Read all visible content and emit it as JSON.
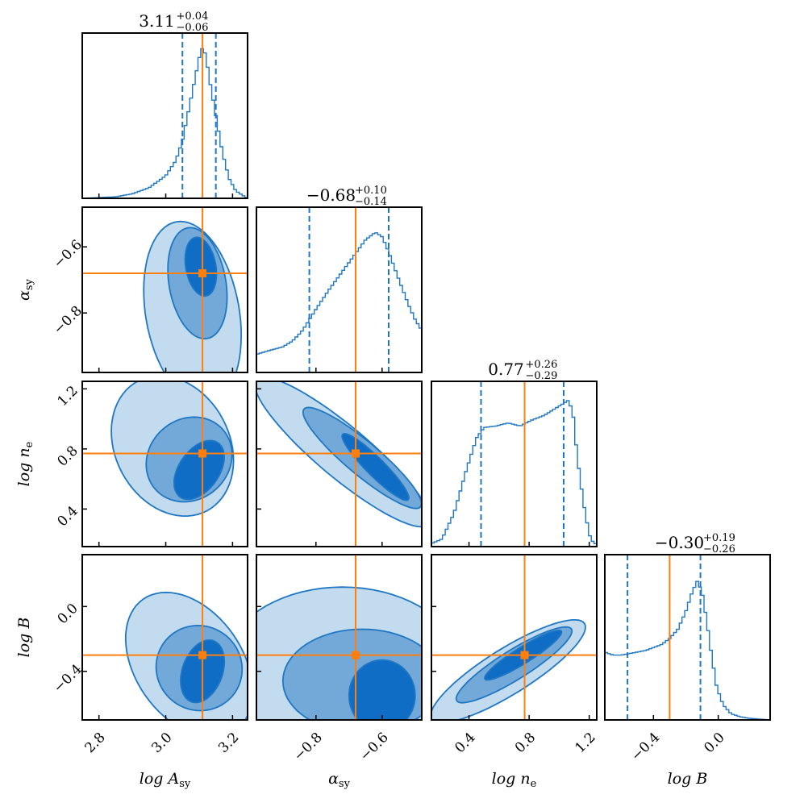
{
  "chart_data": {
    "type": "corner",
    "parameters": [
      {
        "key": "logA",
        "label": "log A_sy",
        "label_main": "log A",
        "label_sub": "sy",
        "range": [
          2.75,
          3.245
        ],
        "ticks": [
          2.8,
          3.0,
          3.2
        ],
        "tick_labels": [
          "2.8",
          "3.0",
          "3.2"
        ],
        "truth": 3.11,
        "title": {
          "value": "3.11",
          "plus": "+0.04",
          "minus": "−0.06"
        },
        "quantiles": [
          3.05,
          3.11,
          3.15
        ]
      },
      {
        "key": "alpha",
        "label": "α_sy",
        "label_main": "α",
        "label_sub": "sy",
        "range": [
          -0.98,
          -0.48
        ],
        "ticks": [
          -0.8,
          -0.6
        ],
        "tick_labels": [
          "−0.8",
          "−0.6"
        ],
        "truth": -0.68,
        "title": {
          "value": "−0.68",
          "plus": "+0.10",
          "minus": "−0.14"
        },
        "quantiles": [
          -0.82,
          -0.68,
          -0.58
        ]
      },
      {
        "key": "logne",
        "label": "log n_e",
        "label_main": "log n",
        "label_sub": "e",
        "range": [
          0.15,
          1.25
        ],
        "ticks": [
          0.4,
          0.8,
          1.2
        ],
        "tick_labels": [
          "0.4",
          "0.8",
          "1.2"
        ],
        "truth": 0.77,
        "title": {
          "value": "0.77",
          "plus": "+0.26",
          "minus": "−0.29"
        },
        "quantiles": [
          0.48,
          0.77,
          1.03
        ]
      },
      {
        "key": "logB",
        "label": "log B",
        "label_main": "log B",
        "label_sub": "",
        "range": [
          -0.7,
          0.32
        ],
        "ticks": [
          -0.4,
          0.0
        ],
        "tick_labels": [
          "−0.4",
          "0.0"
        ],
        "truth": -0.3,
        "title": {
          "value": "−0.30",
          "plus": "+0.19",
          "minus": "−0.26"
        },
        "quantiles": [
          -0.56,
          -0.3,
          -0.11
        ]
      }
    ],
    "left_axis_ticks": {
      "alpha": {
        "ticks": [
          -0.8,
          -0.6
        ],
        "labels": [
          "−0.8",
          "−0.6"
        ]
      },
      "logne": {
        "ticks": [
          0.4,
          0.8,
          1.2
        ],
        "labels": [
          "0.4",
          "0.8",
          "1.2"
        ]
      },
      "logB": {
        "ticks": [
          -0.4,
          0.0
        ],
        "labels": [
          "−0.4",
          "0.0"
        ]
      }
    },
    "histograms": {
      "logA": {
        "x": [
          2.75,
          2.85,
          2.9,
          2.95,
          3.0,
          3.03,
          3.05,
          3.07,
          3.09,
          3.1,
          3.11,
          3.12,
          3.13,
          3.15,
          3.17,
          3.19,
          3.21,
          3.23,
          3.245
        ],
        "density": [
          0,
          0.01,
          0.03,
          0.07,
          0.15,
          0.25,
          0.38,
          0.6,
          0.82,
          0.93,
          1.0,
          0.95,
          0.8,
          0.55,
          0.3,
          0.13,
          0.05,
          0.02,
          0
        ]
      },
      "alpha": {
        "x": [
          -0.98,
          -0.95,
          -0.9,
          -0.87,
          -0.84,
          -0.8,
          -0.76,
          -0.72,
          -0.68,
          -0.65,
          -0.62,
          -0.6,
          -0.58,
          -0.55,
          -0.52,
          -0.5,
          -0.48
        ],
        "density": [
          0.12,
          0.14,
          0.17,
          0.21,
          0.28,
          0.42,
          0.55,
          0.67,
          0.79,
          0.88,
          0.93,
          0.9,
          0.8,
          0.62,
          0.45,
          0.35,
          0.28
        ]
      },
      "logne": {
        "x": [
          0.15,
          0.22,
          0.3,
          0.38,
          0.45,
          0.5,
          0.58,
          0.66,
          0.74,
          0.82,
          0.9,
          0.98,
          1.03,
          1.06,
          1.09,
          1.12,
          1.16,
          1.2,
          1.23
        ],
        "density": [
          0.02,
          0.05,
          0.22,
          0.5,
          0.72,
          0.79,
          0.8,
          0.82,
          0.8,
          0.84,
          0.87,
          0.92,
          0.95,
          0.97,
          0.9,
          0.6,
          0.3,
          0.08,
          0.02
        ]
      },
      "logB": {
        "x": [
          -0.7,
          -0.65,
          -0.6,
          -0.55,
          -0.5,
          -0.45,
          -0.4,
          -0.35,
          -0.3,
          -0.25,
          -0.2,
          -0.16,
          -0.13,
          -0.1,
          -0.07,
          -0.04,
          -0.01,
          0.03,
          0.08,
          0.14,
          0.2,
          0.32
        ],
        "density": [
          0.45,
          0.43,
          0.43,
          0.44,
          0.45,
          0.46,
          0.48,
          0.5,
          0.54,
          0.6,
          0.72,
          0.85,
          0.92,
          0.85,
          0.65,
          0.42,
          0.22,
          0.1,
          0.04,
          0.02,
          0.01,
          0
        ]
      }
    },
    "contour_levels": [
      "outer",
      "middle",
      "inner"
    ],
    "colors": {
      "hist": "#1f77c4",
      "truth": "#ff7f0e",
      "outer": "#c2dbef",
      "middle": "#72a9d8",
      "inner": "#0f6dc6"
    }
  }
}
